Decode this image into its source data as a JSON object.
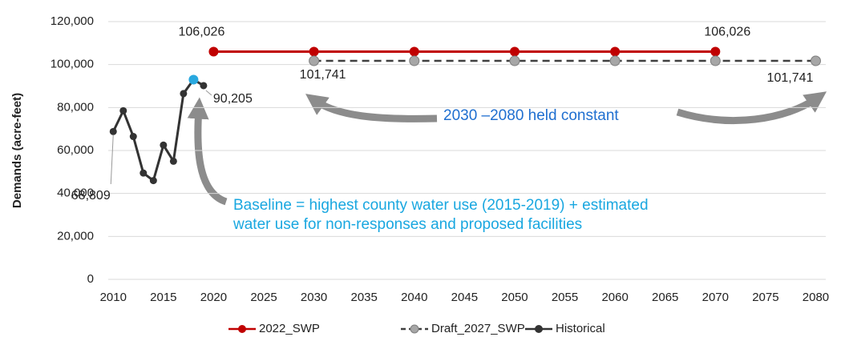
{
  "chart_data": {
    "type": "line",
    "y_label": "Demands (acre-feet)",
    "xlim": [
      2009.5,
      2081
    ],
    "xticks": [
      2010,
      2015,
      2020,
      2025,
      2030,
      2035,
      2040,
      2045,
      2050,
      2055,
      2060,
      2065,
      2070,
      2075,
      2080
    ],
    "ylim": [
      0,
      120000
    ],
    "yticks": [
      0,
      {
        "value": 20000,
        "label": "20,000"
      },
      {
        "value": 40000,
        "label": "40,000"
      },
      {
        "value": 60000,
        "label": "60,000"
      },
      {
        "value": 80000,
        "label": "80,000"
      },
      {
        "value": 100000,
        "label": "100,000"
      },
      {
        "value": 120000,
        "label": "120,000"
      }
    ],
    "grid": true,
    "legend": "bottom",
    "series": [
      {
        "name": "2022_SWP",
        "color": "#c00000",
        "marker_color": "#c00000",
        "dash": false,
        "x": [
          2020,
          2030,
          2040,
          2050,
          2060,
          2070
        ],
        "values": [
          106026,
          106026,
          106026,
          106026,
          106026,
          106026
        ],
        "value_labels": [
          "106,026",
          null,
          null,
          null,
          null,
          "106,026"
        ]
      },
      {
        "name": "Draft_2027_SWP",
        "color": "#404040",
        "marker_color": "#a6a6a6",
        "dash": true,
        "x": [
          2030,
          2040,
          2050,
          2060,
          2070,
          2080
        ],
        "values": [
          101741,
          101741,
          101741,
          101741,
          101741,
          101741
        ],
        "value_labels": [
          "101,741",
          null,
          null,
          null,
          null,
          "101,741"
        ]
      },
      {
        "name": "Historical",
        "color": "#333333",
        "marker_color": "#333333",
        "dash": false,
        "x": [
          2010,
          2011,
          2012,
          2013,
          2014,
          2015,
          2016,
          2017,
          2018,
          2019
        ],
        "values": [
          68809,
          78500,
          66500,
          49500,
          46000,
          62500,
          55000,
          86500,
          93000,
          90205
        ],
        "marker_colors": [
          "#333333",
          "#333333",
          "#333333",
          "#333333",
          "#333333",
          "#333333",
          "#333333",
          "#333333",
          "#29a8df",
          "#333333"
        ],
        "value_labels": [
          "68,809",
          null,
          null,
          null,
          null,
          null,
          null,
          null,
          null,
          "90,205"
        ]
      }
    ],
    "annotations": [
      {
        "lines": [
          "2030 –2080 held constant"
        ],
        "color": "#1f6fd0"
      },
      {
        "lines": [
          "Baseline = highest county water use (2015-2019) + estimated",
          "water use for non-responses and proposed facilities"
        ],
        "color": "#19a7e0"
      }
    ]
  }
}
